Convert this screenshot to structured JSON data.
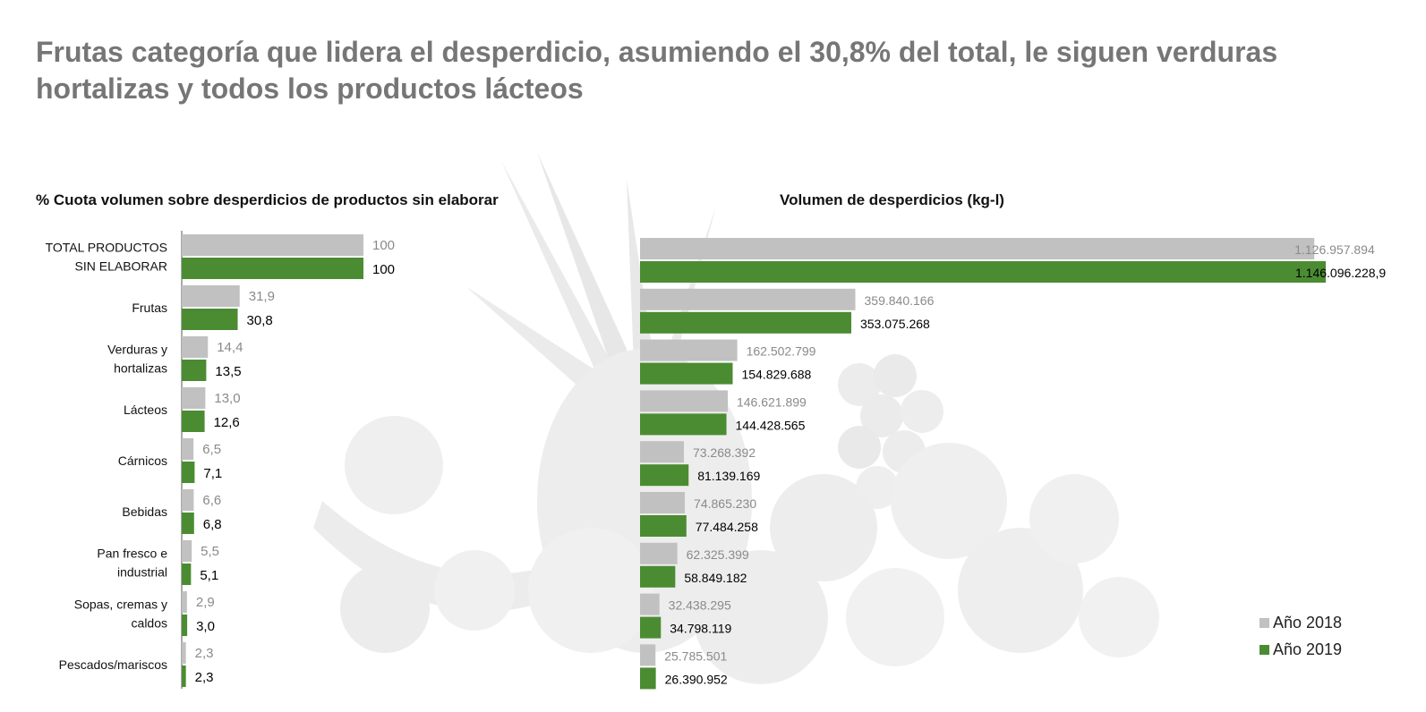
{
  "title": "Frutas categoría que lidera el desperdicio, asumiendo el 30,8% del total, le siguen verduras hortalizas y todos los productos lácteos",
  "colors": {
    "y2018": "#c1c1c1",
    "y2019": "#4b8c32",
    "label2018": "#8a8a8a",
    "label2019": "#000000"
  },
  "legend": [
    {
      "label": "Año 2018",
      "color": "#c1c1c1"
    },
    {
      "label": "Año 2019",
      "color": "#4b8c32"
    }
  ],
  "chart_data": [
    {
      "type": "bar",
      "orientation": "horizontal",
      "title": "% Cuota volumen sobre desperdicios de productos sin elaborar",
      "categories": [
        [
          "TOTAL PRODUCTOS",
          "SIN ELABORAR"
        ],
        [
          "Frutas"
        ],
        [
          "Verduras y",
          "hortalizas"
        ],
        [
          "Lácteos"
        ],
        [
          "Cárnicos"
        ],
        [
          "Bebidas"
        ],
        [
          "Pan fresco e",
          "industrial"
        ],
        [
          "Sopas, cremas y",
          "caldos"
        ],
        [
          "Pescados/mariscos"
        ]
      ],
      "xlim": [
        0,
        100
      ],
      "series": [
        {
          "name": "Año 2018",
          "values": [
            100,
            31.9,
            14.4,
            13.0,
            6.5,
            6.6,
            5.5,
            2.9,
            2.3
          ],
          "labels": [
            "100",
            "31,9",
            "14,4",
            "13,0",
            "6,5",
            "6,6",
            "5,5",
            "2,9",
            "2,3"
          ]
        },
        {
          "name": "Año 2019",
          "values": [
            100,
            30.8,
            13.5,
            12.6,
            7.1,
            6.8,
            5.1,
            3.0,
            2.3
          ],
          "labels": [
            "100",
            "30,8",
            "13,5",
            "12,6",
            "7,1",
            "6,8",
            "5,1",
            "3,0",
            "2,3"
          ]
        }
      ]
    },
    {
      "type": "bar",
      "orientation": "horizontal",
      "title": "Volumen de desperdicios (kg-l)",
      "xlim": [
        0,
        1146096228.9
      ],
      "series": [
        {
          "name": "Año 2018",
          "values": [
            1126957894,
            359840166,
            162502799,
            146621899,
            73268392,
            74865230,
            62325399,
            32438295,
            25785501
          ],
          "labels": [
            "1.126.957.894",
            "359.840.166",
            "162.502.799",
            "146.621.899",
            "73.268.392",
            "74.865.230",
            "62.325.399",
            "32.438.295",
            "25.785.501"
          ]
        },
        {
          "name": "Año 2019",
          "values": [
            1146096228.9,
            353075268,
            154829688,
            144428565,
            81139169,
            77484258,
            58849182,
            34798119,
            26390952
          ],
          "labels": [
            "1.146.096.228,9",
            "353.075.268",
            "154.829.688",
            "144.428.565",
            "81.139.169",
            "77.484.258",
            "58.849.182",
            "34.798.119",
            "26.390.952"
          ]
        }
      ]
    }
  ]
}
